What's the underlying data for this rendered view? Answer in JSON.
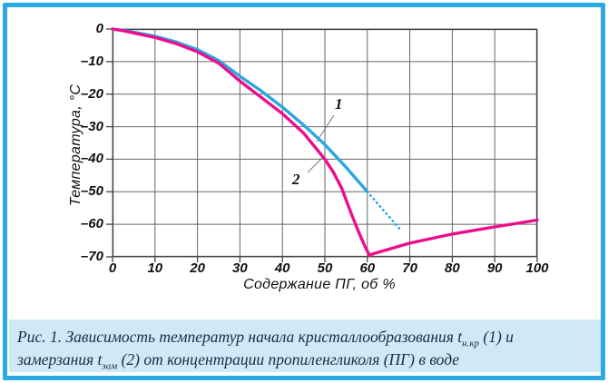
{
  "figure": {
    "border_color": "#29abe2",
    "background_color": "#ffffff",
    "caption_band_color": "#cfe9f7",
    "grid_color": "#666666",
    "axis_color": "#444444",
    "tick_text_color": "#111111",
    "caption_text_color": "#1c2b45"
  },
  "chart": {
    "y_axis": {
      "title": "Температура, °С",
      "ticks": [
        "0",
        "–10",
        "–20",
        "–30",
        "–40",
        "–50",
        "–60",
        "–70"
      ]
    },
    "x_axis": {
      "title": "Содержание ПГ, об %",
      "ticks": [
        "0",
        "10",
        "20",
        "30",
        "40",
        "50",
        "60",
        "70",
        "80",
        "90",
        "100"
      ]
    },
    "curve_labels": [
      "1",
      "2"
    ]
  },
  "caption": {
    "line1": {
      "text": "Рис. 1. Зависимость температур начала кристаллообразования t",
      "sub": "н.кр",
      "tail": " (1) и"
    },
    "line2": {
      "text": "замерзания t",
      "sub": "зам",
      "tail": " (2) от концентрации пропиленгликоля (ПГ) в воде"
    }
  },
  "chart_data": {
    "type": "line",
    "title": "",
    "xlabel": "Содержание ПГ, об %",
    "ylabel": "Температура, °С",
    "xlim": [
      0,
      100
    ],
    "ylim": [
      -70,
      0
    ],
    "x_ticks": [
      0,
      10,
      20,
      30,
      40,
      50,
      60,
      70,
      80,
      90,
      100
    ],
    "y_ticks": [
      0,
      -10,
      -20,
      -30,
      -40,
      -50,
      -60,
      -70
    ],
    "grid": true,
    "legend_position": "none",
    "series": [
      {
        "name": "1",
        "description": "температура начала кристаллообразования t н.кр",
        "color": "#29a8e0",
        "style": "solid",
        "points": [
          [
            0,
            0
          ],
          [
            2.5,
            -0.4
          ],
          [
            5,
            -1
          ],
          [
            7.5,
            -1.6
          ],
          [
            10,
            -2.2
          ],
          [
            15,
            -4
          ],
          [
            20,
            -6.3
          ],
          [
            25,
            -9.7
          ],
          [
            30,
            -14.5
          ],
          [
            35,
            -19
          ],
          [
            40,
            -24
          ],
          [
            45,
            -29.5
          ],
          [
            50,
            -35.5
          ],
          [
            55,
            -42.5
          ],
          [
            60,
            -50
          ]
        ]
      },
      {
        "name": "1-dotted-extension",
        "description": "пунктирное продолжение кривой 1",
        "color": "#29a8e0",
        "style": "dotted",
        "points": [
          [
            60,
            -50
          ],
          [
            68,
            -62
          ]
        ]
      },
      {
        "name": "2",
        "description": "температура замерзания t зам",
        "color": "#ec0d8e",
        "style": "solid",
        "points": [
          [
            0,
            0
          ],
          [
            2.5,
            -0.5
          ],
          [
            5,
            -1.2
          ],
          [
            7.5,
            -1.9
          ],
          [
            10,
            -2.6
          ],
          [
            15,
            -4.5
          ],
          [
            20,
            -7
          ],
          [
            25,
            -10.5
          ],
          [
            30,
            -16
          ],
          [
            35,
            -21
          ],
          [
            40,
            -26
          ],
          [
            45,
            -32
          ],
          [
            50,
            -40
          ],
          [
            52,
            -44
          ],
          [
            54,
            -49
          ],
          [
            56,
            -56
          ],
          [
            58,
            -62.5
          ],
          [
            59.5,
            -67
          ],
          [
            60.5,
            -69.5
          ],
          [
            62,
            -68.8
          ],
          [
            70,
            -65.8
          ],
          [
            80,
            -63
          ],
          [
            90,
            -60.8
          ],
          [
            100,
            -58.7
          ]
        ]
      }
    ]
  }
}
